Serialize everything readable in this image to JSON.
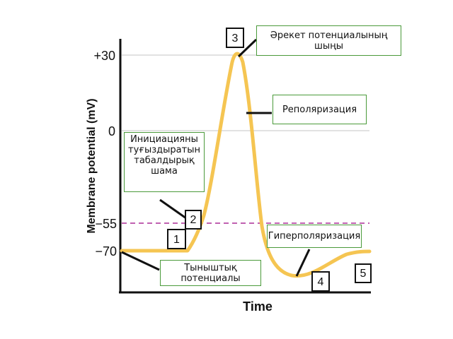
{
  "axes": {
    "y_label": "Membrane potential (mV)",
    "x_label": "Time",
    "ticks": [
      "+30",
      "0",
      "−55",
      "−70"
    ]
  },
  "phases": [
    "1",
    "2",
    "3",
    "4",
    "5"
  ],
  "labels": {
    "action_potential_peak": "Әрекет потенциалының шыңы",
    "repolarization": "Реполяризация",
    "initiation_threshold": "Инициацияны туғыздыратын табалдырық шама",
    "hyperpolarization": "Гиперполяризация",
    "resting_potential": "Тыныштық потенциалы"
  },
  "colors": {
    "curve": "#f5c552",
    "threshold_line": "#c060b0",
    "grid": "#d9d9d9",
    "label_border": "#4a9a3a"
  }
}
